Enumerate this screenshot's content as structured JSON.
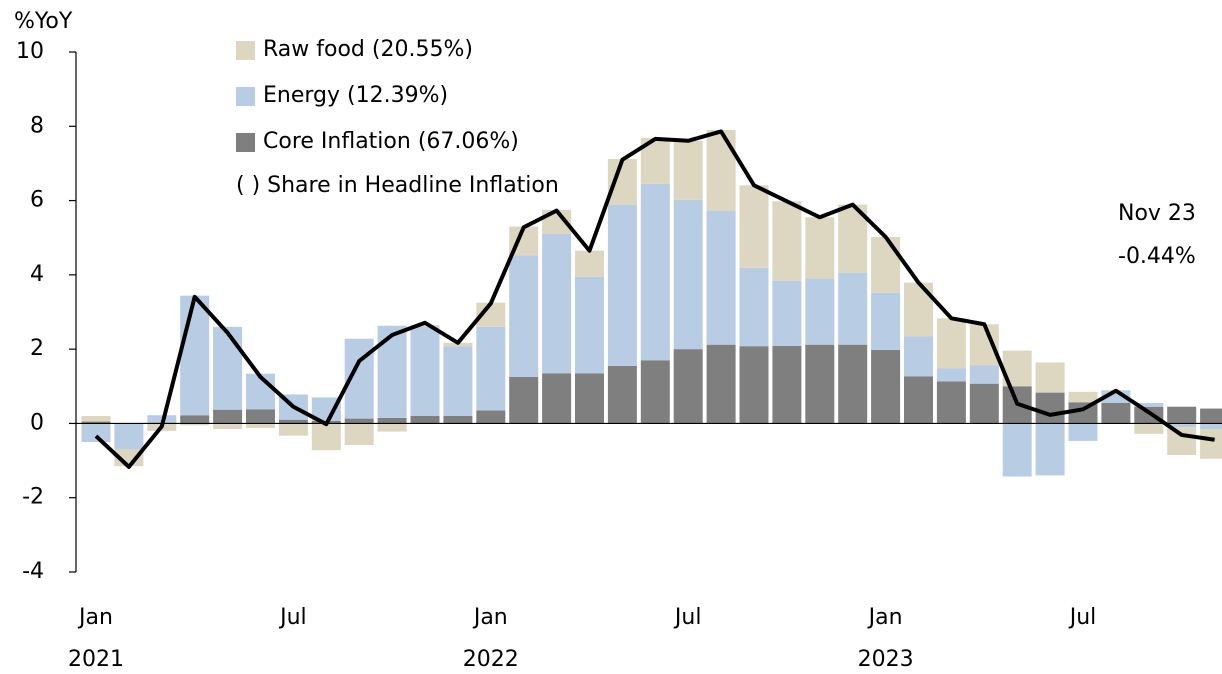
{
  "chart_data": {
    "type": "stacked_bar_line",
    "y_axis_label": "%YoY",
    "categories": [
      "Jan",
      null,
      null,
      null,
      null,
      null,
      "Jul",
      null,
      null,
      null,
      null,
      null,
      "Jan",
      null,
      null,
      null,
      null,
      null,
      "Jul",
      null,
      null,
      null,
      null,
      null,
      "Jan",
      null,
      null,
      null,
      null,
      null,
      "Jul",
      null,
      null,
      null,
      null
    ],
    "year_labels": [
      "2021",
      "2022",
      "2023"
    ],
    "series": [
      {
        "name": "Core Inflation (67.06%)",
        "kind": "bar",
        "color": "#7f7f7f",
        "values": [
          0.05,
          0,
          0.02,
          0.22,
          0.37,
          0.38,
          0.1,
          0.07,
          0.13,
          0.15,
          0.2,
          0.2,
          0.35,
          1.25,
          1.35,
          1.35,
          1.55,
          1.7,
          2.0,
          2.12,
          2.08,
          2.09,
          2.12,
          2.12,
          1.98,
          1.27,
          1.13,
          1.07,
          1.0,
          0.83,
          0.57,
          0.55,
          0.45,
          0.45,
          0.4
        ]
      },
      {
        "name": "Energy (12.39%)",
        "kind": "bar",
        "color": "#b8cce4",
        "values": [
          -0.5,
          -0.7,
          0.2,
          3.22,
          2.23,
          0.96,
          0.68,
          0.63,
          2.15,
          2.48,
          2.4,
          1.87,
          2.25,
          3.27,
          3.75,
          2.6,
          4.34,
          4.75,
          4.02,
          3.61,
          2.11,
          1.75,
          1.78,
          1.93,
          1.54,
          1.07,
          0.35,
          0.49,
          -1.43,
          -1.4,
          -0.47,
          0.33,
          0.1,
          -0.1,
          -0.15
        ]
      },
      {
        "name": "Raw food (20.55%)",
        "kind": "bar",
        "color": "#ddd6c0",
        "values": [
          0.15,
          -0.45,
          -0.2,
          -0.05,
          -0.15,
          -0.12,
          -0.33,
          -0.72,
          -0.58,
          -0.22,
          0.05,
          0.1,
          0.65,
          0.78,
          0.65,
          0.7,
          1.23,
          1.24,
          1.59,
          2.17,
          2.22,
          2.14,
          1.65,
          1.84,
          1.5,
          1.45,
          1.35,
          1.11,
          0.96,
          0.81,
          0.28,
          0.02,
          -0.28,
          -0.75,
          -0.8
        ]
      },
      {
        "kind": "line",
        "color": "#000000",
        "values": [
          -0.34,
          -1.17,
          -0.08,
          3.41,
          2.44,
          1.25,
          0.45,
          -0.02,
          1.68,
          2.38,
          2.71,
          2.17,
          3.23,
          5.28,
          5.73,
          4.65,
          7.1,
          7.66,
          7.61,
          7.86,
          6.41,
          5.98,
          5.55,
          5.89,
          5.02,
          3.79,
          2.83,
          2.67,
          0.53,
          0.23,
          0.38,
          0.88,
          0.3,
          -0.31,
          -0.44
        ]
      }
    ],
    "legend_order": [
      2,
      1,
      0
    ],
    "legend_note": "( ) Share in Headline Inflation",
    "annotations": [
      "Nov 23",
      "-0.44%"
    ],
    "ylim": [
      -4,
      10
    ],
    "yticks": [
      -4,
      -2,
      0,
      2,
      4,
      6,
      8,
      10
    ]
  }
}
